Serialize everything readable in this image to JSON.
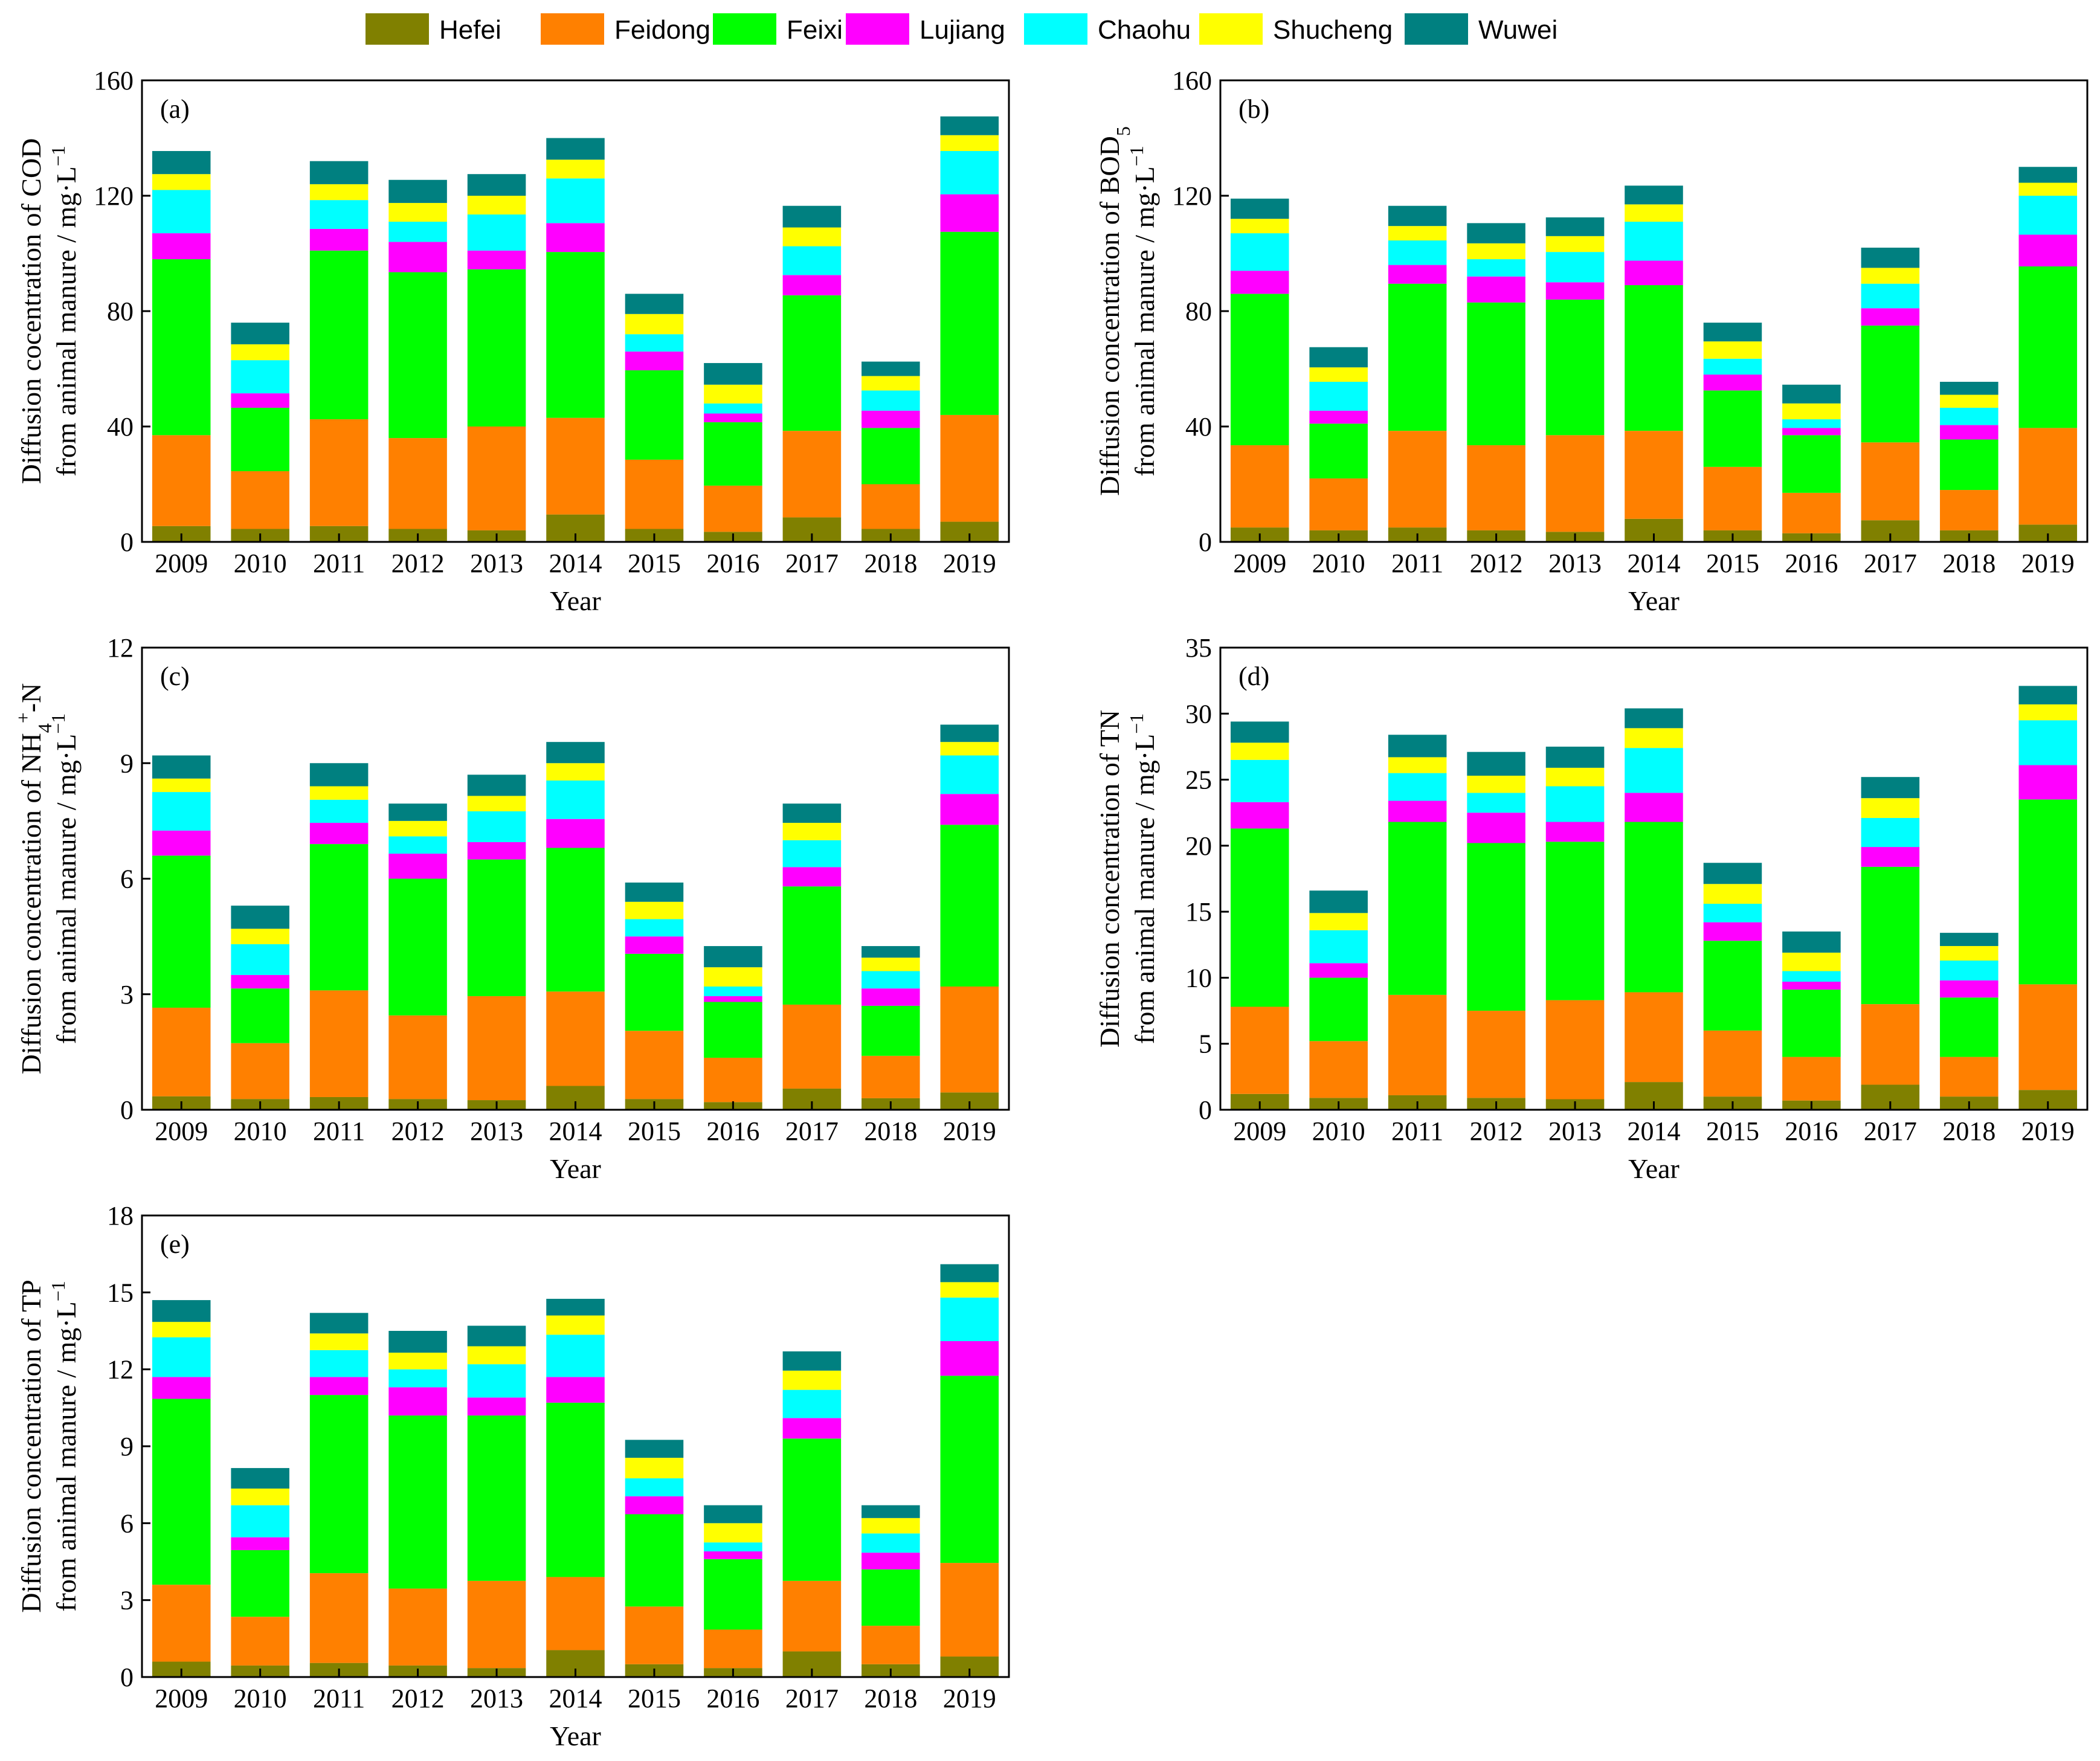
{
  "legend": {
    "series": [
      {
        "name": "Hefei",
        "color": "#808000"
      },
      {
        "name": "Feidong",
        "color": "#FF8000"
      },
      {
        "name": "Feixi",
        "color": "#00FF00"
      },
      {
        "name": "Lujiang",
        "color": "#FF00FF"
      },
      {
        "name": "Chaohu",
        "color": "#00FFFF"
      },
      {
        "name": "Shucheng",
        "color": "#FFFF00"
      },
      {
        "name": "Wuwei",
        "color": "#008080"
      }
    ]
  },
  "chart_data": [
    {
      "type": "bar",
      "stacked": true,
      "panel_label": "(a)",
      "ylabel_line1": "Diffusion cocentration of COD",
      "ylabel_line2": "from animal manure / mg·L",
      "ylabel_sup": "−1",
      "xlabel": "Year",
      "ylim": [
        0,
        160
      ],
      "yticks": [
        0,
        40,
        80,
        120,
        160
      ],
      "ytick_labels": [
        "0",
        "40",
        "80",
        "120",
        "160"
      ],
      "categories": [
        "2009",
        "2010",
        "2011",
        "2012",
        "2013",
        "2014",
        "2015",
        "2016",
        "2017",
        "2018",
        "2019"
      ],
      "series": [
        {
          "name": "Hefei",
          "values": [
            5.5,
            4.5,
            5.5,
            4.5,
            4,
            9.5,
            4.5,
            3.5,
            8.5,
            4.5,
            7
          ]
        },
        {
          "name": "Feidong",
          "values": [
            31.5,
            20,
            37,
            31.5,
            36,
            33.5,
            24,
            16,
            30,
            15.5,
            37
          ]
        },
        {
          "name": "Feixi",
          "values": [
            61,
            22,
            58.5,
            57.5,
            54.5,
            57.5,
            31,
            22,
            47,
            19.5,
            63.5
          ]
        },
        {
          "name": "Lujiang",
          "values": [
            9,
            5,
            7.5,
            10.5,
            6.5,
            10,
            6.5,
            3,
            7,
            6,
            13
          ]
        },
        {
          "name": "Chaohu",
          "values": [
            15,
            11.5,
            10,
            7,
            12.5,
            15.5,
            6,
            3.5,
            10,
            7,
            15
          ]
        },
        {
          "name": "Shucheng",
          "values": [
            5.5,
            5.5,
            5.5,
            6.5,
            6.5,
            6.5,
            7,
            6.5,
            6.5,
            5,
            5.5
          ]
        },
        {
          "name": "Wuwei",
          "values": [
            8,
            7.5,
            8,
            8,
            7.5,
            7.5,
            7,
            7.5,
            7.5,
            5,
            6.5
          ]
        }
      ]
    },
    {
      "type": "bar",
      "stacked": true,
      "panel_label": "(b)",
      "ylabel_line1": "Diffusion concentration of BOD",
      "ylabel_sub": "5",
      "ylabel_line2": "from animal manure / mg·L",
      "ylabel_sup": "−1",
      "xlabel": "Year",
      "ylim": [
        0,
        160
      ],
      "yticks": [
        0,
        40,
        80,
        120,
        160
      ],
      "ytick_labels": [
        "0",
        "40",
        "80",
        "120",
        "160"
      ],
      "categories": [
        "2009",
        "2010",
        "2011",
        "2012",
        "2013",
        "2014",
        "2015",
        "2016",
        "2017",
        "2018",
        "2019"
      ],
      "series": [
        {
          "name": "Hefei",
          "values": [
            5,
            4,
            5,
            4,
            3.5,
            8,
            4,
            3,
            7.5,
            4,
            6
          ]
        },
        {
          "name": "Feidong",
          "values": [
            28.5,
            18,
            33.5,
            29.5,
            33.5,
            30.5,
            22,
            14,
            27,
            14,
            33.5
          ]
        },
        {
          "name": "Feixi",
          "values": [
            52.5,
            19,
            51,
            49.5,
            47,
            50.5,
            26.5,
            20,
            40.5,
            17.5,
            56
          ]
        },
        {
          "name": "Lujiang",
          "values": [
            8,
            4.5,
            6.5,
            9,
            6,
            8.5,
            5.5,
            2.5,
            6,
            5,
            11
          ]
        },
        {
          "name": "Chaohu",
          "values": [
            13,
            10,
            8.5,
            6,
            10.5,
            13.5,
            5.5,
            3,
            8.5,
            6,
            13.5
          ]
        },
        {
          "name": "Shucheng",
          "values": [
            5,
            5,
            5,
            5.5,
            5.5,
            6,
            6,
            5.5,
            5.5,
            4.5,
            4.5
          ]
        },
        {
          "name": "Wuwei",
          "values": [
            7,
            7,
            7,
            7,
            6.5,
            6.5,
            6.5,
            6.5,
            7,
            4.5,
            5.5
          ]
        }
      ]
    },
    {
      "type": "bar",
      "stacked": true,
      "panel_label": "(c)",
      "ylabel_line1": "Diffusion concentration of NH",
      "ylabel_sub": "4",
      "ylabel_sup1": "+",
      "ylabel_line1_tail": "-N",
      "ylabel_line2": "from animal manure / mg·L",
      "ylabel_sup": "−1",
      "xlabel": "Year",
      "ylim": [
        0,
        12
      ],
      "yticks": [
        0,
        3,
        6,
        9,
        12
      ],
      "ytick_labels": [
        "0",
        "3",
        "6",
        "9",
        "12"
      ],
      "categories": [
        "2009",
        "2010",
        "2011",
        "2012",
        "2013",
        "2014",
        "2015",
        "2016",
        "2017",
        "2018",
        "2019"
      ],
      "series": [
        {
          "name": "Hefei",
          "values": [
            0.35,
            0.28,
            0.33,
            0.28,
            0.25,
            0.62,
            0.28,
            0.2,
            0.55,
            0.3,
            0.45
          ]
        },
        {
          "name": "Feidong",
          "values": [
            2.3,
            1.45,
            2.77,
            2.17,
            2.7,
            2.45,
            1.77,
            1.15,
            2.18,
            1.1,
            2.75
          ]
        },
        {
          "name": "Feixi",
          "values": [
            3.95,
            1.42,
            3.8,
            3.55,
            3.55,
            3.73,
            2.0,
            1.45,
            3.07,
            1.3,
            4.2
          ]
        },
        {
          "name": "Lujiang",
          "values": [
            0.65,
            0.35,
            0.55,
            0.65,
            0.45,
            0.75,
            0.45,
            0.15,
            0.5,
            0.45,
            0.8
          ]
        },
        {
          "name": "Chaohu",
          "values": [
            1.0,
            0.8,
            0.6,
            0.45,
            0.8,
            1.0,
            0.45,
            0.25,
            0.7,
            0.45,
            1.0
          ]
        },
        {
          "name": "Shucheng",
          "values": [
            0.35,
            0.4,
            0.35,
            0.4,
            0.4,
            0.45,
            0.45,
            0.5,
            0.45,
            0.35,
            0.35
          ]
        },
        {
          "name": "Wuwei",
          "values": [
            0.6,
            0.6,
            0.6,
            0.45,
            0.55,
            0.55,
            0.5,
            0.55,
            0.5,
            0.3,
            0.45
          ]
        }
      ]
    },
    {
      "type": "bar",
      "stacked": true,
      "panel_label": "(d)",
      "ylabel_line1": "Diffusion concentration of TN",
      "ylabel_line2": "from animal manure / mg·L",
      "ylabel_sup": "−1",
      "xlabel": "Year",
      "ylim": [
        0,
        35
      ],
      "yticks": [
        0,
        5,
        10,
        15,
        20,
        25,
        30,
        35
      ],
      "ytick_labels": [
        "0",
        "5",
        "10",
        "15",
        "20",
        "25",
        "30",
        "35"
      ],
      "categories": [
        "2009",
        "2010",
        "2011",
        "2012",
        "2013",
        "2014",
        "2015",
        "2016",
        "2017",
        "2018",
        "2019"
      ],
      "series": [
        {
          "name": "Hefei",
          "values": [
            1.2,
            0.9,
            1.1,
            0.9,
            0.8,
            2.1,
            1.0,
            0.7,
            1.9,
            1.0,
            1.5
          ]
        },
        {
          "name": "Feidong",
          "values": [
            6.6,
            4.3,
            7.6,
            6.6,
            7.5,
            6.8,
            5.0,
            3.3,
            6.1,
            3.0,
            8.0
          ]
        },
        {
          "name": "Feixi",
          "values": [
            13.5,
            4.8,
            13.1,
            12.7,
            12.0,
            12.9,
            6.8,
            5.1,
            10.4,
            4.5,
            14.0
          ]
        },
        {
          "name": "Lujiang",
          "values": [
            2.0,
            1.1,
            1.6,
            2.3,
            1.5,
            2.2,
            1.4,
            0.6,
            1.5,
            1.3,
            2.6
          ]
        },
        {
          "name": "Chaohu",
          "values": [
            3.2,
            2.5,
            2.1,
            1.5,
            2.7,
            3.4,
            1.4,
            0.8,
            2.2,
            1.5,
            3.4
          ]
        },
        {
          "name": "Shucheng",
          "values": [
            1.3,
            1.3,
            1.2,
            1.3,
            1.4,
            1.5,
            1.5,
            1.4,
            1.5,
            1.1,
            1.2
          ]
        },
        {
          "name": "Wuwei",
          "values": [
            1.6,
            1.7,
            1.7,
            1.8,
            1.6,
            1.5,
            1.6,
            1.6,
            1.6,
            1.0,
            1.4
          ]
        }
      ]
    },
    {
      "type": "bar",
      "stacked": true,
      "panel_label": "(e)",
      "ylabel_line1": "Diffusion concentration of TP",
      "ylabel_line2": "from animal manure / mg·L",
      "ylabel_sup": "−1",
      "xlabel": "Year",
      "ylim": [
        0,
        18
      ],
      "yticks": [
        0,
        3,
        6,
        9,
        12,
        15,
        18
      ],
      "ytick_labels": [
        "0",
        "3",
        "6",
        "9",
        "12",
        "15",
        "18"
      ],
      "categories": [
        "2009",
        "2010",
        "2011",
        "2012",
        "2013",
        "2014",
        "2015",
        "2016",
        "2017",
        "2018",
        "2019"
      ],
      "series": [
        {
          "name": "Hefei",
          "values": [
            0.6,
            0.45,
            0.55,
            0.45,
            0.35,
            1.05,
            0.5,
            0.35,
            1.0,
            0.5,
            0.8
          ]
        },
        {
          "name": "Feidong",
          "values": [
            3.0,
            1.9,
            3.5,
            3.0,
            3.4,
            2.85,
            2.25,
            1.5,
            2.75,
            1.5,
            3.65
          ]
        },
        {
          "name": "Feixi",
          "values": [
            7.25,
            2.6,
            6.95,
            6.75,
            6.45,
            6.8,
            3.6,
            2.75,
            5.55,
            2.2,
            7.3
          ]
        },
        {
          "name": "Lujiang",
          "values": [
            0.85,
            0.5,
            0.7,
            1.1,
            0.7,
            1.0,
            0.7,
            0.3,
            0.8,
            0.65,
            1.35
          ]
        },
        {
          "name": "Chaohu",
          "values": [
            1.55,
            1.25,
            1.05,
            0.7,
            1.3,
            1.65,
            0.7,
            0.35,
            1.1,
            0.75,
            1.7
          ]
        },
        {
          "name": "Shucheng",
          "values": [
            0.6,
            0.65,
            0.65,
            0.65,
            0.7,
            0.75,
            0.8,
            0.75,
            0.75,
            0.6,
            0.6
          ]
        },
        {
          "name": "Wuwei",
          "values": [
            0.85,
            0.8,
            0.8,
            0.85,
            0.8,
            0.65,
            0.7,
            0.7,
            0.75,
            0.5,
            0.7
          ]
        }
      ]
    }
  ]
}
